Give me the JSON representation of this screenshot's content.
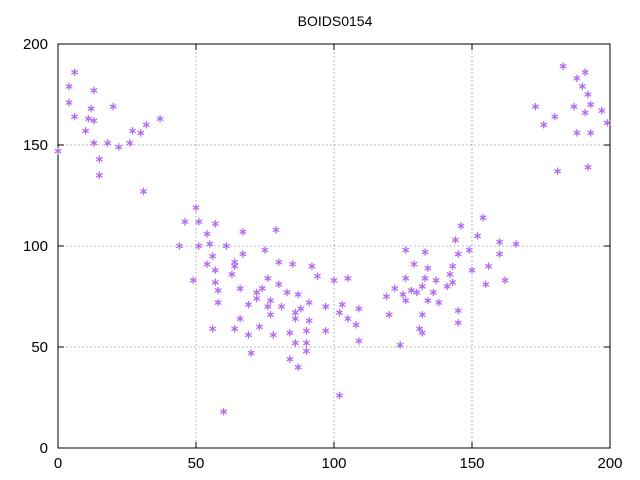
{
  "chart_data": {
    "type": "scatter",
    "title": "BOIDS0154",
    "xlabel": "",
    "ylabel": "",
    "xlim": [
      0,
      200
    ],
    "ylim": [
      0,
      200
    ],
    "xticks": [
      0,
      50,
      100,
      150,
      200
    ],
    "yticks": [
      0,
      50,
      100,
      150,
      200
    ],
    "grid": true,
    "marker_color": "#b36ef0",
    "series": [
      {
        "name": "",
        "points": [
          [
            0,
            147
          ],
          [
            4,
            179
          ],
          [
            4,
            171
          ],
          [
            6,
            164
          ],
          [
            6,
            186
          ],
          [
            10,
            157
          ],
          [
            11,
            163
          ],
          [
            12,
            168
          ],
          [
            13,
            177
          ],
          [
            13,
            151
          ],
          [
            13,
            162
          ],
          [
            15,
            143
          ],
          [
            15,
            135
          ],
          [
            18,
            151
          ],
          [
            20,
            169
          ],
          [
            22,
            149
          ],
          [
            26,
            151
          ],
          [
            27,
            157
          ],
          [
            30,
            156
          ],
          [
            31,
            127
          ],
          [
            32,
            160
          ],
          [
            37,
            163
          ],
          [
            44,
            100
          ],
          [
            46,
            112
          ],
          [
            49,
            83
          ],
          [
            50,
            119
          ],
          [
            51,
            112
          ],
          [
            51,
            100
          ],
          [
            54,
            106
          ],
          [
            54,
            91
          ],
          [
            55,
            101
          ],
          [
            56,
            95
          ],
          [
            56,
            59
          ],
          [
            57,
            82
          ],
          [
            57,
            88
          ],
          [
            57,
            111
          ],
          [
            58,
            72
          ],
          [
            58,
            78
          ],
          [
            60,
            18
          ],
          [
            61,
            100
          ],
          [
            63,
            86
          ],
          [
            64,
            92
          ],
          [
            64,
            90
          ],
          [
            64,
            59
          ],
          [
            66,
            79
          ],
          [
            66,
            64
          ],
          [
            67,
            96
          ],
          [
            67,
            107
          ],
          [
            69,
            56
          ],
          [
            69,
            71
          ],
          [
            70,
            47
          ],
          [
            72,
            77
          ],
          [
            72,
            74
          ],
          [
            73,
            60
          ],
          [
            74,
            79
          ],
          [
            75,
            98
          ],
          [
            76,
            70
          ],
          [
            76,
            84
          ],
          [
            77,
            73
          ],
          [
            77,
            66
          ],
          [
            78,
            56
          ],
          [
            79,
            108
          ],
          [
            80,
            81
          ],
          [
            80,
            92
          ],
          [
            81,
            70
          ],
          [
            83,
            77
          ],
          [
            84,
            57
          ],
          [
            84,
            44
          ],
          [
            85,
            91
          ],
          [
            86,
            52
          ],
          [
            86,
            64
          ],
          [
            86,
            67
          ],
          [
            87,
            76
          ],
          [
            87,
            40
          ],
          [
            88,
            69
          ],
          [
            90,
            48
          ],
          [
            90,
            52
          ],
          [
            90,
            58
          ],
          [
            91,
            72
          ],
          [
            91,
            63
          ],
          [
            92,
            90
          ],
          [
            94,
            85
          ],
          [
            97,
            70
          ],
          [
            97,
            58
          ],
          [
            100,
            83
          ],
          [
            102,
            67
          ],
          [
            102,
            26
          ],
          [
            103,
            71
          ],
          [
            105,
            64
          ],
          [
            105,
            84
          ],
          [
            108,
            61
          ],
          [
            109,
            69
          ],
          [
            109,
            53
          ],
          [
            119,
            75
          ],
          [
            120,
            66
          ],
          [
            122,
            79
          ],
          [
            124,
            51
          ],
          [
            125,
            76
          ],
          [
            126,
            73
          ],
          [
            126,
            84
          ],
          [
            126,
            98
          ],
          [
            128,
            78
          ],
          [
            129,
            91
          ],
          [
            130,
            77
          ],
          [
            131,
            59
          ],
          [
            132,
            66
          ],
          [
            132,
            57
          ],
          [
            132,
            80
          ],
          [
            133,
            84
          ],
          [
            133,
            97
          ],
          [
            134,
            89
          ],
          [
            134,
            73
          ],
          [
            136,
            77
          ],
          [
            137,
            83
          ],
          [
            138,
            72
          ],
          [
            141,
            80
          ],
          [
            142,
            86
          ],
          [
            143,
            82
          ],
          [
            143,
            90
          ],
          [
            144,
            103
          ],
          [
            145,
            68
          ],
          [
            145,
            62
          ],
          [
            145,
            96
          ],
          [
            146,
            110
          ],
          [
            149,
            98
          ],
          [
            150,
            88
          ],
          [
            152,
            105
          ],
          [
            154,
            114
          ],
          [
            155,
            81
          ],
          [
            156,
            90
          ],
          [
            160,
            96
          ],
          [
            160,
            102
          ],
          [
            162,
            83
          ],
          [
            166,
            101
          ],
          [
            173,
            169
          ],
          [
            176,
            160
          ],
          [
            180,
            164
          ],
          [
            181,
            137
          ],
          [
            183,
            189
          ],
          [
            187,
            169
          ],
          [
            188,
            156
          ],
          [
            188,
            183
          ],
          [
            190,
            179
          ],
          [
            191,
            186
          ],
          [
            191,
            166
          ],
          [
            192,
            175
          ],
          [
            192,
            139
          ],
          [
            193,
            156
          ],
          [
            193,
            170
          ],
          [
            197,
            167
          ],
          [
            199,
            161
          ]
        ]
      }
    ]
  }
}
